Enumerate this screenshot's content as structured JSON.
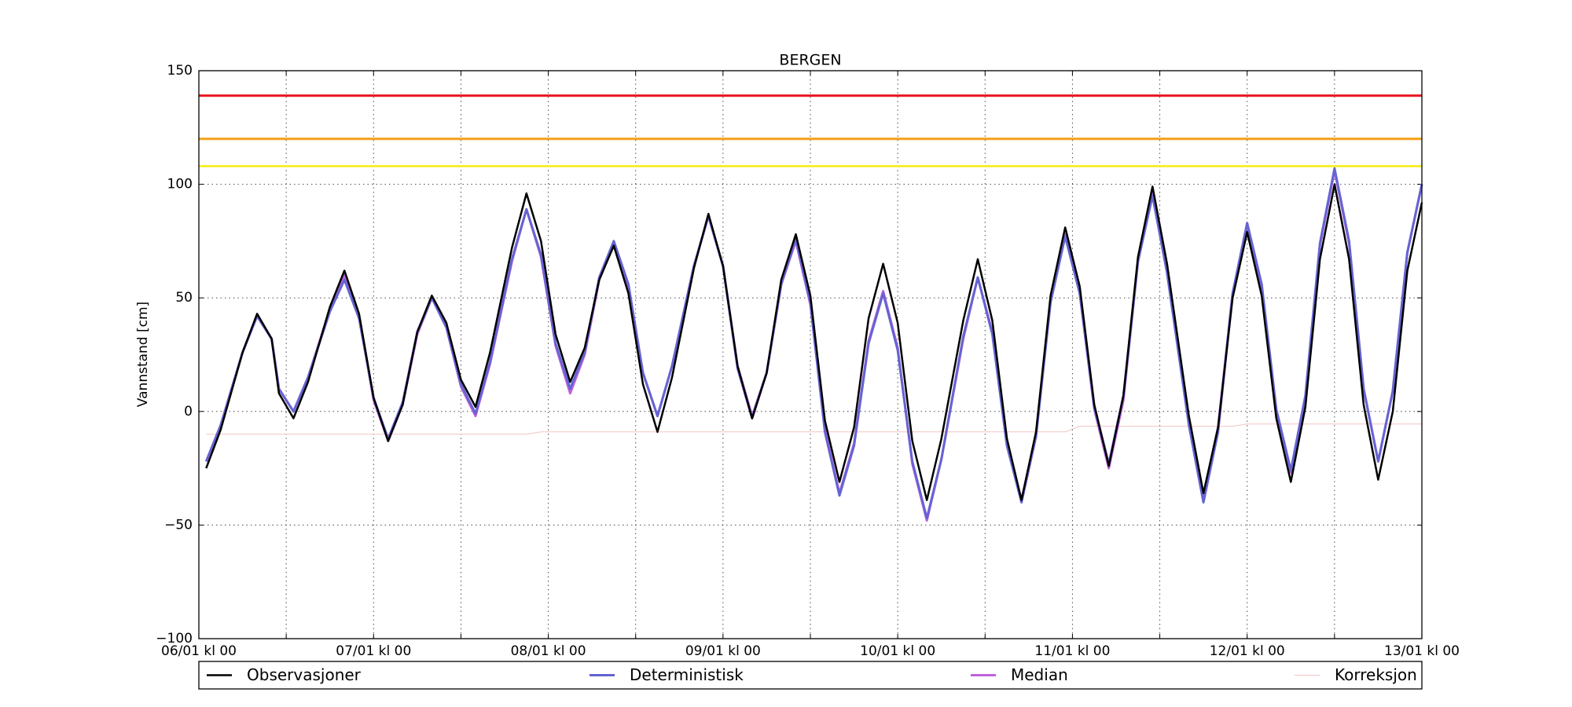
{
  "chart_data": {
    "type": "line",
    "title": "BERGEN",
    "ylabel": "Vannstand [cm]",
    "x": [
      1,
      3,
      6,
      8,
      10,
      11,
      13,
      15,
      18,
      20,
      22,
      24,
      26,
      28,
      30,
      32,
      34,
      36,
      38,
      40,
      43,
      45,
      47,
      49,
      51,
      53,
      55,
      57,
      59,
      61,
      63,
      65,
      68,
      70,
      72,
      74,
      76,
      78,
      80,
      82,
      84,
      86,
      88,
      90,
      92,
      94,
      96,
      98,
      100,
      102,
      105,
      107,
      109,
      111,
      113,
      115,
      117,
      119,
      121,
      123,
      125,
      127,
      129,
      131,
      133,
      136,
      138,
      140,
      142,
      144,
      146,
      148,
      150,
      152,
      154,
      156,
      158,
      160,
      162,
      164,
      166,
      168
    ],
    "series": [
      {
        "name": "Korreksjon",
        "color": "#f4c4c4",
        "width": 1,
        "values": [
          -10,
          -10,
          -10,
          -10,
          -10,
          -10,
          -10,
          -10,
          -10,
          -10,
          -10,
          -10,
          -10,
          -10,
          -10,
          -10,
          -10,
          -10,
          -10,
          -10,
          -10,
          -10,
          -9,
          -9,
          -9,
          -9,
          -9,
          -9,
          -9,
          -9,
          -9,
          -9,
          -9,
          -9,
          -9,
          -9,
          -9,
          -9,
          -9,
          -9,
          -9,
          -9,
          -9,
          -9,
          -9,
          -9,
          -9,
          -9,
          -9,
          -9,
          -9,
          -9,
          -9,
          -9,
          -9,
          -9,
          -9,
          -9,
          -6.5,
          -6.5,
          -6.5,
          -6.5,
          -6.5,
          -6.5,
          -6.5,
          -6.5,
          -6.5,
          -6.5,
          -6.5,
          -5.5,
          -5.5,
          -5.5,
          -5.5,
          -5.5,
          -5.5,
          -5.5,
          -5.5,
          -5.5,
          -5.5,
          -5.5,
          -5.5,
          -5.5
        ]
      },
      {
        "name": "Median",
        "color": "#c060e0",
        "width": 3,
        "values": [
          -22,
          -6,
          26,
          42,
          32,
          10,
          0,
          15,
          45,
          60,
          42,
          5,
          -13,
          3,
          34,
          50,
          37,
          11,
          -2,
          21,
          66,
          89,
          68,
          29,
          8,
          25,
          58,
          74,
          55,
          17,
          -2,
          20,
          64,
          86,
          64,
          20,
          -2,
          17,
          56,
          75,
          47,
          -8,
          -36,
          -14,
          31,
          53,
          28,
          -23,
          -48,
          -21,
          32,
          59,
          35,
          -15,
          -39,
          -10,
          49,
          78,
          52,
          1,
          -25,
          5,
          66,
          96,
          63,
          -4,
          -37,
          -7,
          52,
          82,
          55,
          0,
          -27,
          6,
          73,
          106,
          74,
          10,
          -22,
          9,
          70,
          100
        ]
      },
      {
        "name": "Deterministisk",
        "color": "#6464d2",
        "width": 3,
        "values": [
          -22,
          -6,
          26,
          42,
          32,
          10,
          0,
          15,
          44,
          58,
          41,
          6,
          -12,
          4,
          35,
          50,
          37,
          12,
          -1,
          22,
          67,
          89,
          69,
          30,
          10,
          26,
          59,
          75,
          56,
          17,
          -2,
          20,
          64,
          86,
          64,
          19,
          -3,
          17,
          56,
          76,
          48,
          -9,
          -37,
          -15,
          30,
          52,
          27,
          -22,
          -47,
          -21,
          33,
          59,
          34,
          -15,
          -40,
          -11,
          48,
          77,
          52,
          2,
          -23,
          7,
          66,
          95,
          61,
          -6,
          -40,
          -9,
          52,
          83,
          56,
          1,
          -26,
          7,
          74,
          107,
          75,
          10,
          -22,
          9,
          70,
          100
        ]
      },
      {
        "name": "Observasjoner",
        "color": "#000000",
        "width": 2.5,
        "values": [
          -25,
          -8,
          26,
          43,
          32,
          8,
          -3,
          13,
          46,
          62,
          43,
          6,
          -13,
          3,
          35,
          51,
          39,
          14,
          2,
          26,
          72,
          96,
          75,
          34,
          13,
          28,
          58,
          73,
          52,
          12,
          -9,
          15,
          63,
          87,
          64,
          20,
          -3,
          17,
          58,
          78,
          51,
          -4,
          -31,
          -7,
          41,
          65,
          39,
          -13,
          -39,
          -12,
          40,
          67,
          40,
          -12,
          -39,
          -9,
          51,
          81,
          55,
          3,
          -24,
          7,
          68,
          99,
          65,
          -2,
          -36,
          -7,
          50,
          79,
          51,
          -3,
          -31,
          2,
          67,
          100,
          67,
          3,
          -30,
          0,
          62,
          92
        ]
      }
    ],
    "legend_order": [
      3,
      2,
      1,
      0
    ],
    "thresholds": [
      {
        "value": 139,
        "color": "#e8141c"
      },
      {
        "value": 120,
        "color": "#f5a019"
      },
      {
        "value": 108,
        "color": "#f5f032"
      }
    ],
    "xlim": [
      0,
      168
    ],
    "xticks": [
      {
        "value": 0,
        "label": "06/01 kl 00"
      },
      {
        "value": 12,
        "label": null
      },
      {
        "value": 24,
        "label": "07/01 kl 00"
      },
      {
        "value": 36,
        "label": null
      },
      {
        "value": 48,
        "label": "08/01 kl 00"
      },
      {
        "value": 60,
        "label": null
      },
      {
        "value": 72,
        "label": "09/01 kl 00"
      },
      {
        "value": 84,
        "label": null
      },
      {
        "value": 96,
        "label": "10/01 kl 00"
      },
      {
        "value": 108,
        "label": null
      },
      {
        "value": 120,
        "label": "11/01 kl 00"
      },
      {
        "value": 132,
        "label": null
      },
      {
        "value": 144,
        "label": "12/01 kl 00"
      },
      {
        "value": 156,
        "label": null
      },
      {
        "value": 168,
        "label": "13/01 kl 00"
      }
    ],
    "ylim": [
      -100,
      150
    ],
    "yticks": [
      {
        "value": -100,
        "label": "−100"
      },
      {
        "value": -50,
        "label": "−50"
      },
      0,
      50,
      100,
      150
    ],
    "grid": true
  }
}
